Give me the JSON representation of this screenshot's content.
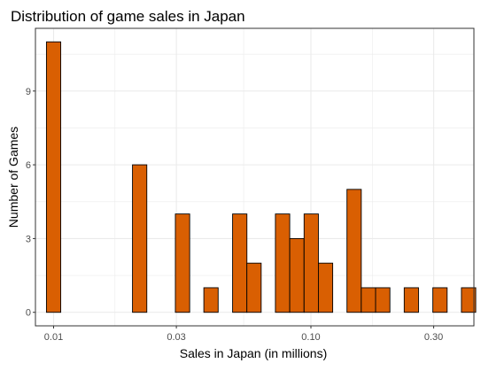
{
  "chart_data": {
    "type": "bar",
    "title": "Distribution of game sales in Japan",
    "xlabel": "Sales in Japan (in millions)",
    "ylabel": "Number of Games",
    "x_scale": "log10",
    "xlim": [
      0.0085,
      0.43
    ],
    "ylim": [
      -0.55,
      11.55
    ],
    "x_ticks": [
      {
        "value": 0.01,
        "label": "0.01"
      },
      {
        "value": 0.03,
        "label": "0.03"
      },
      {
        "value": 0.1,
        "label": "0.10"
      },
      {
        "value": 0.3,
        "label": "0.30"
      }
    ],
    "y_ticks": [
      {
        "value": 0,
        "label": "0"
      },
      {
        "value": 3,
        "label": "3"
      },
      {
        "value": 6,
        "label": "6"
      },
      {
        "value": 9,
        "label": "9"
      }
    ],
    "bins": [
      {
        "x": 0.01,
        "count": 11
      },
      {
        "x": 0.0114,
        "count": 0
      },
      {
        "x": 0.0129,
        "count": 0
      },
      {
        "x": 0.0147,
        "count": 0
      },
      {
        "x": 0.0167,
        "count": 0
      },
      {
        "x": 0.019,
        "count": 0
      },
      {
        "x": 0.0216,
        "count": 6
      },
      {
        "x": 0.0245,
        "count": 0
      },
      {
        "x": 0.0279,
        "count": 0
      },
      {
        "x": 0.0317,
        "count": 4
      },
      {
        "x": 0.036,
        "count": 0
      },
      {
        "x": 0.0409,
        "count": 1
      },
      {
        "x": 0.0465,
        "count": 0
      },
      {
        "x": 0.0529,
        "count": 4
      },
      {
        "x": 0.0601,
        "count": 2
      },
      {
        "x": 0.0683,
        "count": 0
      },
      {
        "x": 0.0776,
        "count": 4
      },
      {
        "x": 0.0882,
        "count": 3
      },
      {
        "x": 0.1003,
        "count": 4
      },
      {
        "x": 0.114,
        "count": 2
      },
      {
        "x": 0.1295,
        "count": 0
      },
      {
        "x": 0.1472,
        "count": 5
      },
      {
        "x": 0.1673,
        "count": 1
      },
      {
        "x": 0.1902,
        "count": 1
      },
      {
        "x": 0.2162,
        "count": 0
      },
      {
        "x": 0.2457,
        "count": 1
      },
      {
        "x": 0.2792,
        "count": 0
      },
      {
        "x": 0.3174,
        "count": 1
      },
      {
        "x": 0.3607,
        "count": 0
      },
      {
        "x": 0.41,
        "count": 1
      }
    ],
    "bar_fill": "#d95f02",
    "bar_stroke": "#000000",
    "grid": true,
    "grid_color": "#ebebeb",
    "panel_border": "#333333",
    "background": "#ffffff"
  }
}
